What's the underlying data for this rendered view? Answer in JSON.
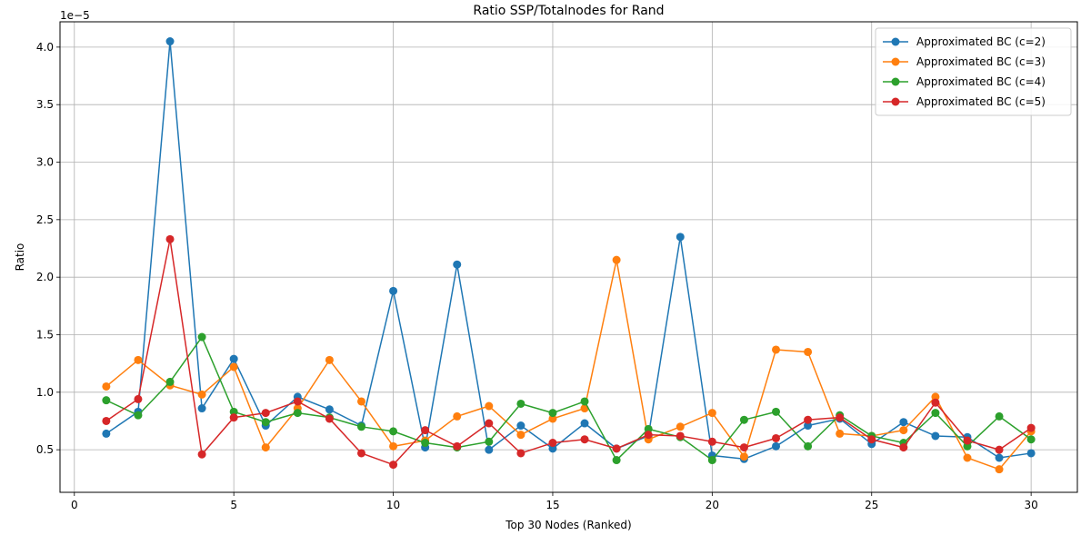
{
  "chart_data": {
    "type": "line",
    "title": "Ratio SSP/Totalnodes for Rand",
    "xlabel": "Top 30 Nodes (Ranked)",
    "ylabel": "Ratio",
    "y_offset_text": "1e−5",
    "xlim": [
      -0.45,
      31.45
    ],
    "ylim": [
      0.13,
      4.22
    ],
    "x_ticks": [
      0,
      5,
      10,
      15,
      20,
      25,
      30
    ],
    "x_tick_labels": [
      "0",
      "5",
      "10",
      "15",
      "20",
      "25",
      "30"
    ],
    "y_ticks": [
      0.5,
      1.0,
      1.5,
      2.0,
      2.5,
      3.0,
      3.5,
      4.0
    ],
    "y_tick_labels": [
      "0.5",
      "1.0",
      "1.5",
      "2.0",
      "2.5",
      "3.0",
      "3.5",
      "4.0"
    ],
    "grid": true,
    "legend_position": "top-right",
    "x": [
      1,
      2,
      3,
      4,
      5,
      6,
      7,
      8,
      9,
      10,
      11,
      12,
      13,
      14,
      15,
      16,
      17,
      18,
      19,
      20,
      21,
      22,
      23,
      24,
      25,
      26,
      27,
      28,
      29,
      30
    ],
    "series": [
      {
        "name": "Approximated BC (c=2)",
        "color": "#1f77b4",
        "values": [
          0.64,
          0.83,
          4.05,
          0.86,
          1.29,
          0.71,
          0.96,
          0.85,
          0.71,
          1.88,
          0.52,
          2.11,
          0.5,
          0.71,
          0.51,
          0.73,
          0.51,
          0.62,
          2.35,
          0.45,
          0.42,
          0.53,
          0.71,
          0.77,
          0.55,
          0.74,
          0.62,
          0.61,
          0.43,
          0.47
        ]
      },
      {
        "name": "Approximated BC (c=3)",
        "color": "#ff7f0e",
        "values": [
          1.05,
          1.28,
          1.06,
          0.98,
          1.22,
          0.52,
          0.86,
          1.28,
          0.92,
          0.53,
          0.58,
          0.79,
          0.88,
          0.63,
          0.77,
          0.86,
          2.15,
          0.59,
          0.7,
          0.82,
          0.44,
          1.37,
          1.35,
          0.64,
          0.62,
          0.67,
          0.96,
          0.43,
          0.33,
          0.66
        ]
      },
      {
        "name": "Approximated BC (c=4)",
        "color": "#2ca02c",
        "values": [
          0.93,
          0.8,
          1.09,
          1.48,
          0.83,
          0.74,
          0.82,
          0.78,
          0.7,
          0.66,
          0.56,
          0.52,
          0.57,
          0.9,
          0.82,
          0.92,
          0.41,
          0.68,
          0.61,
          0.41,
          0.76,
          0.83,
          0.53,
          0.8,
          0.62,
          0.56,
          0.82,
          0.53,
          0.79,
          0.59
        ]
      },
      {
        "name": "Approximated BC (c=5)",
        "color": "#d62728",
        "values": [
          0.75,
          0.94,
          2.33,
          0.46,
          0.78,
          0.82,
          0.92,
          0.77,
          0.47,
          0.37,
          0.67,
          0.53,
          0.73,
          0.47,
          0.56,
          0.59,
          0.51,
          0.63,
          0.62,
          0.57,
          0.52,
          0.6,
          0.76,
          0.78,
          0.59,
          0.52,
          0.91,
          0.58,
          0.5,
          0.69
        ]
      }
    ]
  }
}
